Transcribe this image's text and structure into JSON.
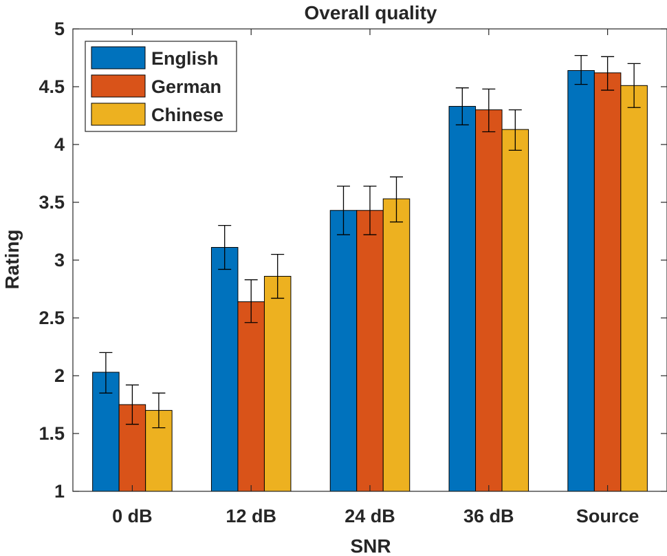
{
  "chart_data": {
    "type": "bar",
    "title": "Overall quality",
    "xlabel": "SNR",
    "ylabel": "Rating",
    "categories": [
      "0 dB",
      "12 dB",
      "24 dB",
      "36 dB",
      "Source"
    ],
    "ylim": [
      1,
      5
    ],
    "yticks": [
      1,
      1.5,
      2,
      2.5,
      3,
      3.5,
      4,
      4.5,
      5
    ],
    "ytick_labels": [
      "1",
      "1.5",
      "2",
      "2.5",
      "3",
      "3.5",
      "4",
      "4.5",
      "5"
    ],
    "grid": false,
    "legend_position": "top-left",
    "series": [
      {
        "name": "English",
        "color": "#0072BD",
        "values": [
          2.03,
          3.11,
          3.43,
          4.33,
          4.64
        ],
        "err_low": [
          1.85,
          2.92,
          3.22,
          4.17,
          4.52
        ],
        "err_high": [
          2.2,
          3.3,
          3.64,
          4.49,
          4.77
        ]
      },
      {
        "name": "German",
        "color": "#D95319",
        "values": [
          1.75,
          2.64,
          3.43,
          4.3,
          4.62
        ],
        "err_low": [
          1.58,
          2.46,
          3.22,
          4.11,
          4.47
        ],
        "err_high": [
          1.92,
          2.83,
          3.64,
          4.48,
          4.76
        ]
      },
      {
        "name": "Chinese",
        "color": "#EDB120",
        "values": [
          1.7,
          2.86,
          3.53,
          4.13,
          4.51
        ],
        "err_low": [
          1.55,
          2.67,
          3.33,
          3.95,
          4.32
        ],
        "err_high": [
          1.85,
          3.05,
          3.72,
          4.3,
          4.7
        ]
      }
    ]
  }
}
